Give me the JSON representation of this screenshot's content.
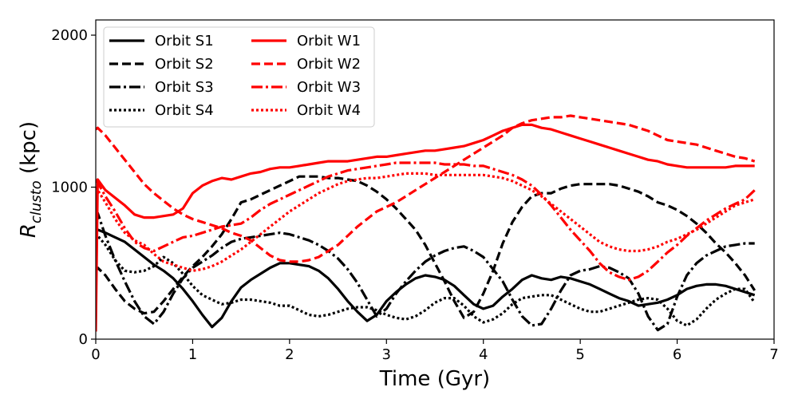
{
  "chart_data": {
    "type": "line",
    "title": "",
    "xlabel": "Time (Gyr)",
    "ylabel_main": "R",
    "ylabel_sub": "clusto",
    "ylabel_unit": " (kpc)",
    "xlim": [
      0,
      7
    ],
    "ylim": [
      0,
      2100
    ],
    "xticks": [
      0,
      1,
      2,
      3,
      4,
      5,
      6,
      7
    ],
    "xtick_labels": [
      "0",
      "1",
      "2",
      "3",
      "4",
      "5",
      "6",
      "7"
    ],
    "yticks": [
      0,
      1000,
      2000
    ],
    "ytick_labels": [
      "0",
      "1000",
      "2000"
    ],
    "grid": false,
    "legend_position": "upper-left",
    "series": [
      {
        "name": "Orbit S1",
        "color": "#000000",
        "style": "solid",
        "x": [
          0,
          0.02,
          0.1,
          0.2,
          0.3,
          0.4,
          0.5,
          0.6,
          0.7,
          0.8,
          0.9,
          1.0,
          1.1,
          1.2,
          1.3,
          1.4,
          1.5,
          1.6,
          1.7,
          1.8,
          1.9,
          2.0,
          2.1,
          2.2,
          2.3,
          2.4,
          2.5,
          2.6,
          2.7,
          2.8,
          2.9,
          3.0,
          3.1,
          3.2,
          3.3,
          3.4,
          3.5,
          3.6,
          3.7,
          3.8,
          3.9,
          4.0,
          4.1,
          4.2,
          4.3,
          4.4,
          4.5,
          4.6,
          4.7,
          4.8,
          4.9,
          5.0,
          5.1,
          5.2,
          5.3,
          5.4,
          5.5,
          5.6,
          5.7,
          5.8,
          5.9,
          6.0,
          6.1,
          6.2,
          6.3,
          6.4,
          6.5,
          6.6,
          6.7,
          6.8
        ],
        "y": [
          700,
          720,
          700,
          670,
          640,
          590,
          540,
          490,
          450,
          400,
          330,
          250,
          160,
          80,
          140,
          250,
          340,
          390,
          430,
          470,
          500,
          500,
          490,
          480,
          450,
          400,
          330,
          250,
          180,
          120,
          160,
          250,
          310,
          360,
          400,
          420,
          410,
          390,
          350,
          290,
          230,
          200,
          220,
          280,
          330,
          390,
          420,
          400,
          390,
          410,
          400,
          380,
          360,
          330,
          300,
          270,
          250,
          220,
          230,
          240,
          260,
          290,
          330,
          350,
          360,
          360,
          350,
          330,
          310,
          290
        ]
      },
      {
        "name": "Orbit S2",
        "color": "#000000",
        "style": "dashed",
        "x": [
          0,
          0.02,
          0.1,
          0.2,
          0.3,
          0.4,
          0.5,
          0.6,
          0.7,
          0.8,
          0.9,
          1.0,
          1.1,
          1.2,
          1.3,
          1.4,
          1.5,
          1.6,
          1.7,
          1.8,
          1.9,
          2.0,
          2.1,
          2.2,
          2.3,
          2.4,
          2.5,
          2.6,
          2.7,
          2.8,
          2.9,
          3.0,
          3.1,
          3.2,
          3.3,
          3.4,
          3.5,
          3.6,
          3.7,
          3.8,
          3.9,
          4.0,
          4.1,
          4.2,
          4.3,
          4.4,
          4.5,
          4.6,
          4.7,
          4.8,
          4.9,
          5.0,
          5.1,
          5.2,
          5.3,
          5.4,
          5.5,
          5.6,
          5.7,
          5.8,
          5.9,
          6.0,
          6.1,
          6.2,
          6.3,
          6.4,
          6.5,
          6.6,
          6.7,
          6.8
        ],
        "y": [
          450,
          470,
          420,
          330,
          250,
          200,
          170,
          180,
          250,
          330,
          410,
          480,
          540,
          610,
          690,
          790,
          900,
          920,
          950,
          980,
          1010,
          1040,
          1070,
          1070,
          1070,
          1060,
          1060,
          1050,
          1040,
          1010,
          970,
          920,
          860,
          790,
          720,
          620,
          500,
          380,
          250,
          140,
          180,
          300,
          450,
          630,
          770,
          870,
          940,
          960,
          960,
          990,
          1010,
          1020,
          1020,
          1020,
          1020,
          1010,
          990,
          970,
          940,
          900,
          880,
          850,
          810,
          760,
          700,
          630,
          570,
          500,
          420,
          320
        ]
      },
      {
        "name": "Orbit S3",
        "color": "#000000",
        "style": "dashdot",
        "x": [
          0,
          0.02,
          0.1,
          0.2,
          0.3,
          0.4,
          0.5,
          0.6,
          0.7,
          0.8,
          0.9,
          1.0,
          1.1,
          1.2,
          1.3,
          1.4,
          1.5,
          1.6,
          1.7,
          1.8,
          1.9,
          2.0,
          2.1,
          2.2,
          2.3,
          2.4,
          2.5,
          2.6,
          2.7,
          2.8,
          2.9,
          3.0,
          3.1,
          3.2,
          3.3,
          3.4,
          3.5,
          3.6,
          3.7,
          3.8,
          3.9,
          4.0,
          4.1,
          4.2,
          4.3,
          4.4,
          4.5,
          4.6,
          4.7,
          4.8,
          4.9,
          5.0,
          5.1,
          5.2,
          5.3,
          5.4,
          5.5,
          5.6,
          5.7,
          5.8,
          5.9,
          6.0,
          6.1,
          6.2,
          6.3,
          6.4,
          6.5,
          6.6,
          6.7,
          6.8
        ],
        "y": [
          800,
          830,
          680,
          520,
          380,
          250,
          150,
          100,
          180,
          300,
          400,
          470,
          510,
          550,
          600,
          640,
          660,
          670,
          680,
          690,
          700,
          690,
          670,
          650,
          620,
          580,
          530,
          460,
          370,
          260,
          150,
          200,
          300,
          380,
          450,
          510,
          550,
          580,
          600,
          610,
          580,
          540,
          460,
          380,
          260,
          150,
          90,
          100,
          200,
          320,
          420,
          450,
          460,
          480,
          470,
          440,
          400,
          300,
          150,
          60,
          100,
          280,
          420,
          500,
          550,
          580,
          610,
          620,
          630,
          630
        ]
      },
      {
        "name": "Orbit S4",
        "color": "#000000",
        "style": "dotted",
        "x": [
          0,
          0.02,
          0.1,
          0.2,
          0.3,
          0.4,
          0.5,
          0.6,
          0.7,
          0.8,
          0.9,
          1.0,
          1.1,
          1.2,
          1.3,
          1.4,
          1.5,
          1.6,
          1.7,
          1.8,
          1.9,
          2.0,
          2.1,
          2.2,
          2.3,
          2.4,
          2.5,
          2.6,
          2.7,
          2.8,
          2.9,
          3.0,
          3.1,
          3.2,
          3.3,
          3.4,
          3.5,
          3.6,
          3.7,
          3.8,
          3.9,
          4.0,
          4.1,
          4.2,
          4.3,
          4.4,
          4.5,
          4.6,
          4.7,
          4.8,
          4.9,
          5.0,
          5.1,
          5.2,
          5.3,
          5.4,
          5.5,
          5.6,
          5.7,
          5.8,
          5.9,
          6.0,
          6.1,
          6.2,
          6.3,
          6.4,
          6.5,
          6.6,
          6.7,
          6.8
        ],
        "y": [
          700,
          680,
          620,
          520,
          450,
          440,
          450,
          480,
          540,
          500,
          430,
          350,
          290,
          260,
          230,
          240,
          260,
          260,
          250,
          240,
          220,
          220,
          190,
          160,
          150,
          160,
          180,
          200,
          210,
          210,
          190,
          160,
          140,
          130,
          150,
          190,
          240,
          270,
          270,
          220,
          150,
          110,
          130,
          170,
          230,
          270,
          280,
          290,
          290,
          260,
          230,
          200,
          180,
          180,
          200,
          220,
          240,
          260,
          270,
          260,
          200,
          120,
          90,
          130,
          200,
          260,
          300,
          330,
          330,
          240
        ]
      },
      {
        "name": "Orbit W1",
        "color": "#ff0000",
        "style": "solid",
        "x": [
          0,
          0.02,
          0.1,
          0.2,
          0.3,
          0.4,
          0.5,
          0.6,
          0.7,
          0.8,
          0.9,
          1.0,
          1.1,
          1.2,
          1.3,
          1.4,
          1.5,
          1.6,
          1.7,
          1.8,
          1.9,
          2.0,
          2.1,
          2.2,
          2.3,
          2.4,
          2.5,
          2.6,
          2.7,
          2.8,
          2.9,
          3.0,
          3.1,
          3.2,
          3.3,
          3.4,
          3.5,
          3.6,
          3.7,
          3.8,
          3.9,
          4.0,
          4.1,
          4.2,
          4.3,
          4.4,
          4.5,
          4.6,
          4.7,
          4.8,
          4.9,
          5.0,
          5.1,
          5.2,
          5.3,
          5.4,
          5.5,
          5.6,
          5.7,
          5.8,
          5.9,
          6.0,
          6.1,
          6.2,
          6.3,
          6.4,
          6.5,
          6.6,
          6.7,
          6.8
        ],
        "y": [
          50,
          1050,
          980,
          930,
          880,
          820,
          800,
          800,
          810,
          820,
          860,
          960,
          1010,
          1040,
          1060,
          1050,
          1070,
          1090,
          1100,
          1120,
          1130,
          1130,
          1140,
          1150,
          1160,
          1170,
          1170,
          1170,
          1180,
          1190,
          1200,
          1200,
          1210,
          1220,
          1230,
          1240,
          1240,
          1250,
          1260,
          1270,
          1290,
          1310,
          1340,
          1370,
          1390,
          1410,
          1410,
          1390,
          1380,
          1360,
          1340,
          1320,
          1300,
          1280,
          1260,
          1240,
          1220,
          1200,
          1180,
          1170,
          1150,
          1140,
          1130,
          1130,
          1130,
          1130,
          1130,
          1140,
          1140,
          1140
        ]
      },
      {
        "name": "Orbit W2",
        "color": "#ff0000",
        "style": "dashed",
        "x": [
          0,
          0.02,
          0.1,
          0.2,
          0.3,
          0.4,
          0.5,
          0.6,
          0.7,
          0.8,
          0.9,
          1.0,
          1.1,
          1.2,
          1.3,
          1.4,
          1.5,
          1.6,
          1.7,
          1.8,
          1.9,
          2.0,
          2.1,
          2.2,
          2.3,
          2.4,
          2.5,
          2.6,
          2.7,
          2.8,
          2.9,
          3.0,
          3.1,
          3.2,
          3.3,
          3.4,
          3.5,
          3.6,
          3.7,
          3.8,
          3.9,
          4.0,
          4.1,
          4.2,
          4.3,
          4.4,
          4.5,
          4.6,
          4.7,
          4.8,
          4.9,
          5.0,
          5.1,
          5.2,
          5.3,
          5.4,
          5.5,
          5.6,
          5.7,
          5.8,
          5.9,
          6.0,
          6.1,
          6.2,
          6.3,
          6.4,
          6.5,
          6.6,
          6.7,
          6.8
        ],
        "y": [
          1380,
          1390,
          1340,
          1260,
          1180,
          1100,
          1020,
          960,
          910,
          860,
          820,
          790,
          770,
          750,
          730,
          700,
          680,
          650,
          600,
          550,
          520,
          510,
          510,
          520,
          540,
          580,
          620,
          680,
          740,
          790,
          840,
          870,
          900,
          940,
          980,
          1020,
          1060,
          1100,
          1140,
          1180,
          1220,
          1260,
          1300,
          1340,
          1390,
          1420,
          1440,
          1450,
          1460,
          1460,
          1470,
          1460,
          1450,
          1440,
          1430,
          1420,
          1410,
          1390,
          1370,
          1340,
          1310,
          1300,
          1290,
          1280,
          1260,
          1240,
          1220,
          1200,
          1190,
          1170
        ]
      },
      {
        "name": "Orbit W3",
        "color": "#ff0000",
        "style": "dashdot",
        "x": [
          0,
          0.02,
          0.1,
          0.2,
          0.3,
          0.4,
          0.5,
          0.6,
          0.7,
          0.8,
          0.9,
          1.0,
          1.1,
          1.2,
          1.3,
          1.4,
          1.5,
          1.6,
          1.7,
          1.8,
          1.9,
          2.0,
          2.1,
          2.2,
          2.3,
          2.4,
          2.5,
          2.6,
          2.7,
          2.8,
          2.9,
          3.0,
          3.1,
          3.2,
          3.3,
          3.4,
          3.5,
          3.6,
          3.7,
          3.8,
          3.9,
          4.0,
          4.1,
          4.2,
          4.3,
          4.4,
          4.5,
          4.6,
          4.7,
          4.8,
          4.9,
          5.0,
          5.1,
          5.2,
          5.3,
          5.4,
          5.5,
          5.6,
          5.7,
          5.8,
          5.9,
          6.0,
          6.1,
          6.2,
          6.3,
          6.4,
          6.5,
          6.6,
          6.7,
          6.8
        ],
        "y": [
          1050,
          1030,
          940,
          840,
          730,
          640,
          600,
          580,
          610,
          640,
          670,
          680,
          700,
          720,
          740,
          750,
          760,
          800,
          850,
          890,
          920,
          950,
          980,
          1010,
          1040,
          1070,
          1090,
          1110,
          1120,
          1130,
          1140,
          1150,
          1160,
          1160,
          1160,
          1160,
          1160,
          1150,
          1150,
          1150,
          1140,
          1140,
          1120,
          1100,
          1080,
          1050,
          1010,
          950,
          880,
          800,
          720,
          650,
          580,
          500,
          440,
          410,
          390,
          410,
          450,
          510,
          570,
          620,
          680,
          730,
          780,
          820,
          860,
          890,
          920,
          980
        ]
      },
      {
        "name": "Orbit W4",
        "color": "#ff0000",
        "style": "dotted",
        "x": [
          0,
          0.02,
          0.1,
          0.2,
          0.3,
          0.4,
          0.5,
          0.6,
          0.7,
          0.8,
          0.9,
          1.0,
          1.1,
          1.2,
          1.3,
          1.4,
          1.5,
          1.6,
          1.7,
          1.8,
          1.9,
          2.0,
          2.1,
          2.2,
          2.3,
          2.4,
          2.5,
          2.6,
          2.7,
          2.8,
          2.9,
          3.0,
          3.1,
          3.2,
          3.3,
          3.4,
          3.5,
          3.6,
          3.7,
          3.8,
          3.9,
          4.0,
          4.1,
          4.2,
          4.3,
          4.4,
          4.5,
          4.6,
          4.7,
          4.8,
          4.9,
          5.0,
          5.1,
          5.2,
          5.3,
          5.4,
          5.5,
          5.6,
          5.7,
          5.8,
          5.9,
          6.0,
          6.1,
          6.2,
          6.3,
          6.4,
          6.5,
          6.6,
          6.7,
          6.8
        ],
        "y": [
          1000,
          980,
          900,
          790,
          700,
          650,
          620,
          560,
          510,
          490,
          470,
          450,
          460,
          480,
          510,
          550,
          590,
          640,
          690,
          740,
          790,
          840,
          880,
          920,
          960,
          990,
          1020,
          1040,
          1050,
          1060,
          1060,
          1070,
          1080,
          1090,
          1090,
          1090,
          1080,
          1080,
          1080,
          1080,
          1080,
          1080,
          1070,
          1060,
          1040,
          1010,
          980,
          940,
          890,
          840,
          790,
          740,
          690,
          640,
          610,
          590,
          580,
          580,
          590,
          610,
          640,
          660,
          690,
          720,
          760,
          800,
          840,
          880,
          900,
          920
        ]
      }
    ]
  }
}
